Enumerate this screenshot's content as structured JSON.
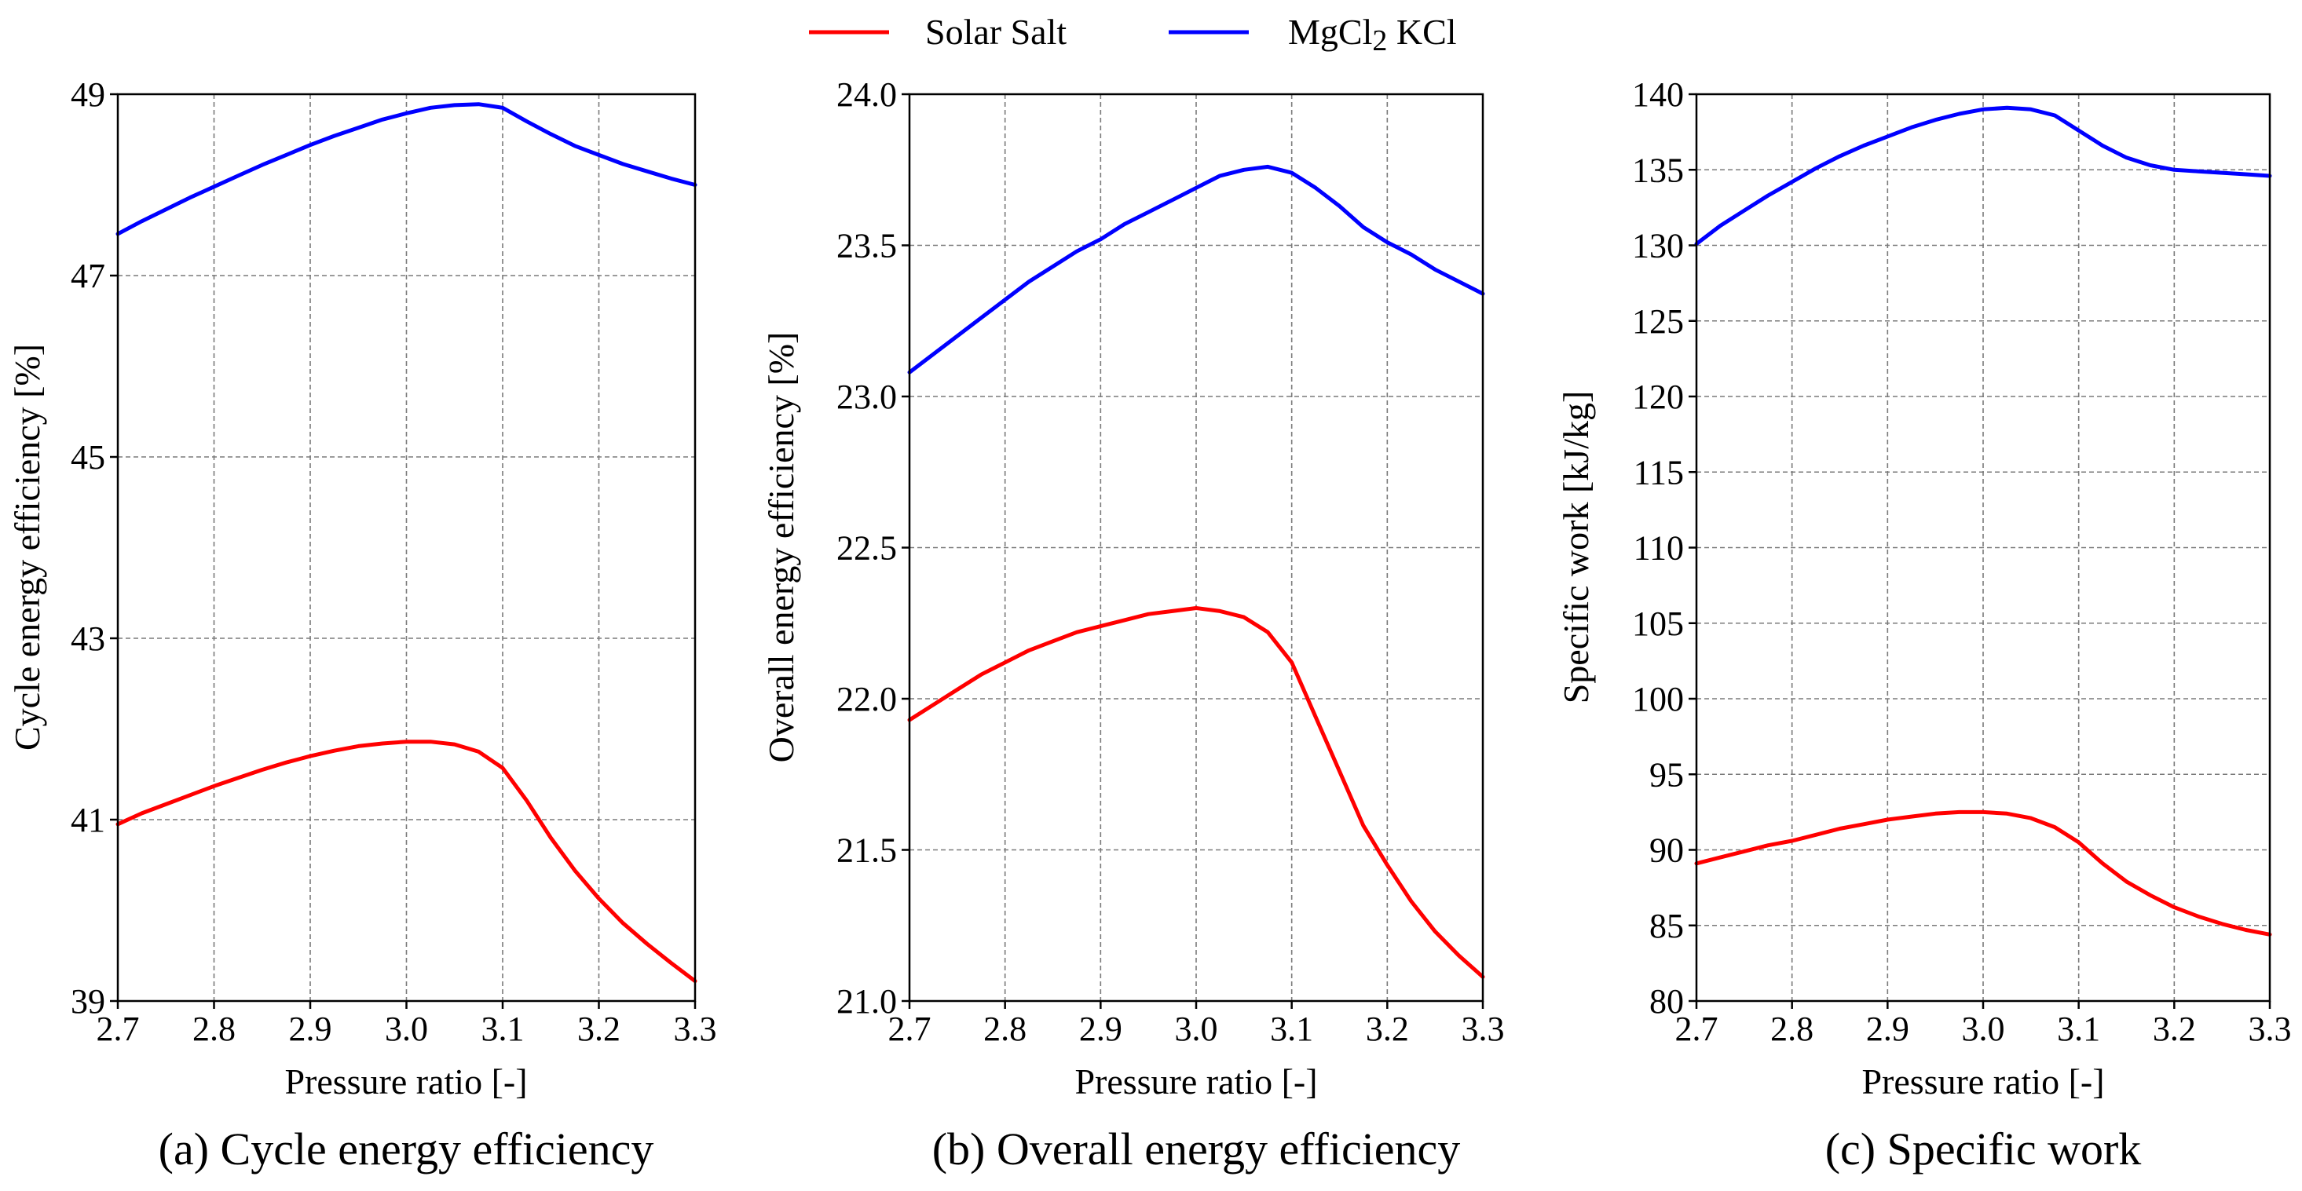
{
  "legend": {
    "items": [
      {
        "label_main": "Solar Salt",
        "label_sub": "",
        "label_tail": "",
        "color": "#ff0000"
      },
      {
        "label_main": "MgCl",
        "label_sub": "2",
        "label_tail": " KCl",
        "color": "#0000ff"
      }
    ]
  },
  "chart_data": [
    {
      "type": "line",
      "caption": "(a) Cycle energy efficiency",
      "xlabel": "Pressure ratio [-]",
      "ylabel": "Cycle energy efficiency [%]",
      "xlim": [
        2.7,
        3.3
      ],
      "ylim": [
        39,
        49
      ],
      "xticks": [
        2.7,
        2.8,
        2.9,
        3.0,
        3.1,
        3.2,
        3.3
      ],
      "xtick_labels": [
        "2.7",
        "2.8",
        "2.9",
        "3.0",
        "3.1",
        "3.2",
        "3.3"
      ],
      "yticks": [
        39,
        41,
        43,
        45,
        47,
        49
      ],
      "ytick_labels": [
        "39",
        "41",
        "43",
        "45",
        "47",
        "49"
      ],
      "grid": true,
      "x": [
        2.7,
        2.725,
        2.75,
        2.775,
        2.8,
        2.825,
        2.85,
        2.875,
        2.9,
        2.925,
        2.95,
        2.975,
        3.0,
        3.025,
        3.05,
        3.075,
        3.1,
        3.125,
        3.15,
        3.175,
        3.2,
        3.225,
        3.25,
        3.275,
        3.3
      ],
      "series": [
        {
          "name": "Solar Salt",
          "color": "#ff0000",
          "values": [
            40.95,
            41.07,
            41.17,
            41.27,
            41.37,
            41.46,
            41.55,
            41.63,
            41.7,
            41.76,
            41.81,
            41.84,
            41.86,
            41.86,
            41.83,
            41.75,
            41.57,
            41.21,
            40.8,
            40.44,
            40.13,
            39.86,
            39.63,
            39.42,
            39.22
          ]
        },
        {
          "name": "MgCl2 KCl",
          "color": "#0000ff",
          "values": [
            47.46,
            47.6,
            47.73,
            47.86,
            47.98,
            48.1,
            48.22,
            48.33,
            48.44,
            48.54,
            48.63,
            48.72,
            48.79,
            48.85,
            48.88,
            48.89,
            48.85,
            48.7,
            48.56,
            48.43,
            48.33,
            48.23,
            48.15,
            48.07,
            48.0
          ]
        }
      ]
    },
    {
      "type": "line",
      "caption": "(b) Overall energy efficiency",
      "xlabel": "Pressure ratio [-]",
      "ylabel": "Overall energy efficiency [%]",
      "xlim": [
        2.7,
        3.3
      ],
      "ylim": [
        21.0,
        24.0
      ],
      "xticks": [
        2.7,
        2.8,
        2.9,
        3.0,
        3.1,
        3.2,
        3.3
      ],
      "xtick_labels": [
        "2.7",
        "2.8",
        "2.9",
        "3.0",
        "3.1",
        "3.2",
        "3.3"
      ],
      "yticks": [
        21.0,
        21.5,
        22.0,
        22.5,
        23.0,
        23.5,
        24.0
      ],
      "ytick_labels": [
        "21.0",
        "21.5",
        "22.0",
        "22.5",
        "23.0",
        "23.5",
        "24.0"
      ],
      "grid": true,
      "x": [
        2.7,
        2.725,
        2.75,
        2.775,
        2.8,
        2.825,
        2.85,
        2.875,
        2.9,
        2.925,
        2.95,
        2.975,
        3.0,
        3.025,
        3.05,
        3.075,
        3.1,
        3.125,
        3.15,
        3.175,
        3.2,
        3.225,
        3.25,
        3.275,
        3.3
      ],
      "series": [
        {
          "name": "Solar Salt",
          "color": "#ff0000",
          "values": [
            21.93,
            21.98,
            22.03,
            22.08,
            22.12,
            22.16,
            22.19,
            22.22,
            22.24,
            22.26,
            22.28,
            22.29,
            22.3,
            22.29,
            22.27,
            22.22,
            22.12,
            21.94,
            21.76,
            21.58,
            21.45,
            21.33,
            21.23,
            21.15,
            21.08
          ]
        },
        {
          "name": "MgCl2 KCl",
          "color": "#0000ff",
          "values": [
            23.08,
            23.14,
            23.2,
            23.26,
            23.32,
            23.38,
            23.43,
            23.48,
            23.52,
            23.57,
            23.61,
            23.65,
            23.69,
            23.73,
            23.75,
            23.76,
            23.74,
            23.69,
            23.63,
            23.56,
            23.51,
            23.47,
            23.42,
            23.38,
            23.34
          ]
        }
      ]
    },
    {
      "type": "line",
      "caption": "(c) Specific work",
      "xlabel": "Pressure ratio [-]",
      "ylabel": "Specific work [kJ/kg]",
      "xlim": [
        2.7,
        3.3
      ],
      "ylim": [
        80,
        140
      ],
      "xticks": [
        2.7,
        2.8,
        2.9,
        3.0,
        3.1,
        3.2,
        3.3
      ],
      "xtick_labels": [
        "2.7",
        "2.8",
        "2.9",
        "3.0",
        "3.1",
        "3.2",
        "3.3"
      ],
      "yticks": [
        80,
        85,
        90,
        95,
        100,
        105,
        110,
        115,
        120,
        125,
        130,
        135,
        140
      ],
      "ytick_labels": [
        "80",
        "85",
        "90",
        "95",
        "100",
        "105",
        "110",
        "115",
        "120",
        "125",
        "130",
        "135",
        "140"
      ],
      "grid": true,
      "x": [
        2.7,
        2.725,
        2.75,
        2.775,
        2.8,
        2.825,
        2.85,
        2.875,
        2.9,
        2.925,
        2.95,
        2.975,
        3.0,
        3.025,
        3.05,
        3.075,
        3.1,
        3.125,
        3.15,
        3.175,
        3.2,
        3.225,
        3.25,
        3.275,
        3.3
      ],
      "series": [
        {
          "name": "Solar Salt",
          "color": "#ff0000",
          "values": [
            89.1,
            89.5,
            89.9,
            90.3,
            90.6,
            91.0,
            91.4,
            91.7,
            92.0,
            92.2,
            92.4,
            92.5,
            92.5,
            92.4,
            92.1,
            91.5,
            90.5,
            89.1,
            87.9,
            87.0,
            86.2,
            85.6,
            85.1,
            84.7,
            84.4
          ]
        },
        {
          "name": "MgCl2 KCl",
          "color": "#0000ff",
          "values": [
            130.1,
            131.3,
            132.3,
            133.3,
            134.2,
            135.1,
            135.9,
            136.6,
            137.2,
            137.8,
            138.3,
            138.7,
            139.0,
            139.1,
            139.0,
            138.6,
            137.6,
            136.6,
            135.8,
            135.3,
            135.0,
            134.9,
            134.8,
            134.7,
            134.6
          ]
        }
      ]
    }
  ]
}
